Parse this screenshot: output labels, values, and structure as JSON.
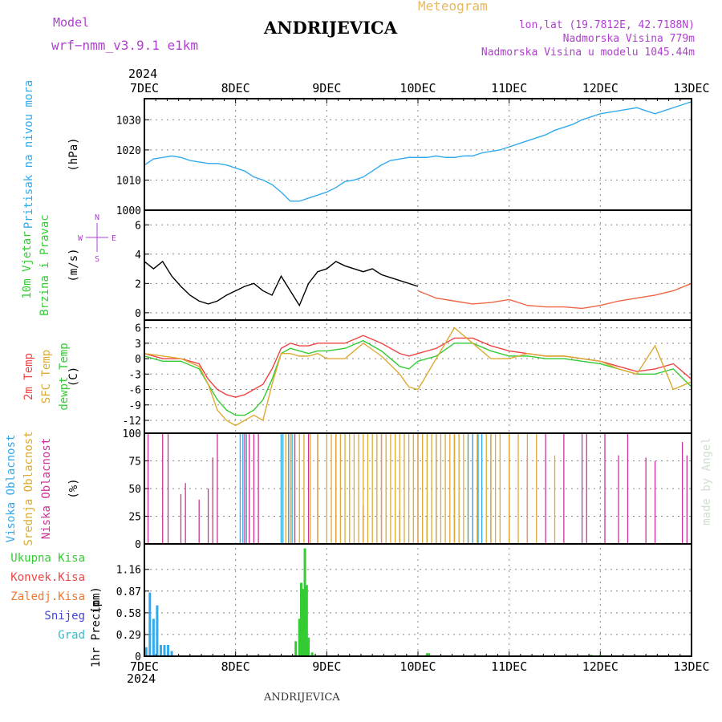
{
  "header": {
    "model_label": "Model",
    "model_name": "wrf−nmm_v3.9.1  e1km",
    "station": "ANDRIJEVICA",
    "product": "Meteogram",
    "lonlat": "lon,lat (19.7812E, 42.7188N)",
    "altitude": "Nadmorska Visina 779m",
    "model_altitude": "Nadmorska Visina u modelu 1045.44m",
    "footer_station": "ANDRIJEVICA",
    "watermark": "made by Angel"
  },
  "colors": {
    "pressure": "#33aaee",
    "temp2m": "#ee4444",
    "sfc_temp": "#ddaa33",
    "dewpt": "#33cc33",
    "high_cloud": "#33aaee",
    "mid_cloud": "#ddaa33",
    "low_cloud": "#cc3399",
    "total_precip": "#33cc33",
    "conv_precip": "#ee4444",
    "frozen_precip": "#ee7733",
    "snow": "#4444dd",
    "graupel": "#33bbcc",
    "wind_line": "#000000",
    "wind_gust": "#ee6644"
  },
  "chart_data": {
    "type": "meteogram",
    "time_axis": {
      "year": "2024",
      "days": [
        "7DEC",
        "8DEC",
        "9DEC",
        "10DEC",
        "11DEC",
        "12DEC",
        "13DEC"
      ],
      "start": "2024-12-07 00:00",
      "end": "2024-12-13 00:00"
    },
    "panels": [
      {
        "id": "pressure",
        "type": "line",
        "ylabel_lines": [
          "Pritisak na nivou mora"
        ],
        "unit": "(hPa)",
        "ylim": [
          1000,
          1037
        ],
        "yticks": [
          1000,
          1010,
          1020,
          1030
        ],
        "series": [
          {
            "color_key": "pressure",
            "x_days": [
              0,
              0.1,
              0.2,
              0.3,
              0.4,
              0.5,
              0.6,
              0.7,
              0.8,
              0.9,
              1.0,
              1.1,
              1.2,
              1.3,
              1.4,
              1.5,
              1.6,
              1.7,
              1.8,
              1.9,
              2.0,
              2.1,
              2.2,
              2.3,
              2.4,
              2.5,
              2.6,
              2.7,
              2.8,
              2.9,
              3.0,
              3.1,
              3.2,
              3.3,
              3.4,
              3.5,
              3.6,
              3.7,
              3.8,
              3.9,
              4.0,
              4.1,
              4.2,
              4.3,
              4.4,
              4.5,
              4.6,
              4.7,
              4.8,
              4.9,
              5.0,
              5.1,
              5.2,
              5.3,
              5.4,
              5.5,
              5.6,
              5.7,
              5.8,
              5.9,
              6.0
            ],
            "values": [
              1015,
              1017,
              1017.5,
              1018,
              1017.5,
              1016.5,
              1016,
              1015.5,
              1015.5,
              1015,
              1014,
              1013,
              1011,
              1010,
              1008.5,
              1006,
              1003,
              1003,
              1004,
              1005,
              1006,
              1007.5,
              1009.5,
              1010,
              1011,
              1013,
              1015,
              1016.5,
              1017,
              1017.5,
              1017.5,
              1017.5,
              1018,
              1017.5,
              1017.5,
              1018,
              1018,
              1019,
              1019.5,
              1020,
              1021,
              1022,
              1023,
              1024,
              1025,
              1026.5,
              1027.5,
              1028.5,
              1030,
              1031,
              1032,
              1032.5,
              1033,
              1033.5,
              1034,
              1033,
              1032,
              1033,
              1034,
              1035,
              1036
            ]
          }
        ]
      },
      {
        "id": "wind",
        "type": "line",
        "ylabel_lines": [
          "10m Vjetar",
          "Brzina i Pravac"
        ],
        "unit": "(m/s)",
        "ylim": [
          -0.5,
          7
        ],
        "yticks": [
          0,
          2,
          4,
          6
        ],
        "compass": [
          "N",
          "E",
          "S",
          "W"
        ],
        "series": [
          {
            "color_key": "wind_line",
            "x_days": [
              0,
              0.1,
              0.2,
              0.3,
              0.4,
              0.5,
              0.6,
              0.7,
              0.8,
              0.9,
              1.0,
              1.1,
              1.2,
              1.3,
              1.4,
              1.5,
              1.6,
              1.7,
              1.8,
              1.9,
              2.0,
              2.1,
              2.2,
              2.3,
              2.4,
              2.5,
              2.6,
              2.7,
              2.8,
              2.9,
              3.0
            ],
            "values": [
              3.5,
              3.0,
              3.5,
              2.5,
              1.8,
              1.2,
              0.8,
              0.6,
              0.8,
              1.2,
              1.5,
              1.8,
              2.0,
              1.5,
              1.2,
              2.5,
              1.5,
              0.5,
              2.0,
              2.8,
              3.0,
              3.5,
              3.2,
              3.0,
              2.8,
              3.0,
              2.6,
              2.4,
              2.2,
              2.0,
              1.8
            ]
          },
          {
            "color_key": "wind_gust",
            "x_days": [
              3.0,
              3.2,
              3.4,
              3.6,
              3.8,
              4.0,
              4.2,
              4.4,
              4.6,
              4.8,
              5.0,
              5.2,
              5.4,
              5.6,
              5.8,
              6.0
            ],
            "values": [
              1.5,
              1.0,
              0.8,
              0.6,
              0.7,
              0.9,
              0.5,
              0.4,
              0.4,
              0.3,
              0.5,
              0.8,
              1.0,
              1.2,
              1.5,
              2.0
            ]
          }
        ]
      },
      {
        "id": "temperature",
        "type": "line",
        "ylabel_lines": [
          "2m Temp",
          "SFC Temp",
          "dewpt Temp"
        ],
        "unit": "(C)",
        "ylim": [
          -14.5,
          7.5
        ],
        "yticks": [
          -12,
          -9,
          -6,
          -3,
          0,
          3,
          6
        ],
        "series": [
          {
            "color_key": "temp2m",
            "x_days": [
              0,
              0.2,
              0.4,
              0.6,
              0.7,
              0.8,
              0.9,
              1.0,
              1.1,
              1.2,
              1.3,
              1.4,
              1.5,
              1.6,
              1.7,
              1.8,
              1.9,
              2.0,
              2.2,
              2.4,
              2.6,
              2.8,
              2.9,
              3.0,
              3.2,
              3.4,
              3.6,
              3.8,
              4.0,
              4.2,
              4.4,
              4.6,
              4.8,
              5.0,
              5.2,
              5.4,
              5.6,
              5.8,
              6.0
            ],
            "values": [
              1,
              0,
              0,
              -1,
              -4,
              -6,
              -7,
              -7.5,
              -7,
              -6,
              -5,
              -2,
              2,
              3,
              2.5,
              2.5,
              3,
              3,
              3,
              4.5,
              3,
              1,
              0.5,
              1,
              2,
              4,
              4,
              2.5,
              1.5,
              1,
              0.5,
              0.5,
              0,
              -0.5,
              -1.5,
              -2.5,
              -2,
              -1,
              -4
            ]
          },
          {
            "color_key": "dewpt",
            "x_days": [
              0,
              0.2,
              0.4,
              0.6,
              0.7,
              0.8,
              0.9,
              1.0,
              1.1,
              1.2,
              1.3,
              1.4,
              1.5,
              1.6,
              1.7,
              1.8,
              1.9,
              2.0,
              2.2,
              2.4,
              2.6,
              2.8,
              2.9,
              3.0,
              3.2,
              3.4,
              3.6,
              3.8,
              4.0,
              4.2,
              4.4,
              4.6,
              4.8,
              5.0,
              5.2,
              5.4,
              5.6,
              5.8,
              6.0
            ],
            "values": [
              0.5,
              -0.5,
              -0.5,
              -2,
              -5,
              -8,
              -10,
              -11,
              -11,
              -10,
              -8,
              -4,
              1,
              2,
              1.5,
              1,
              1.5,
              1.5,
              2,
              3.5,
              1.5,
              -1.5,
              -2,
              -0.5,
              0.5,
              3,
              3,
              1.5,
              0.5,
              0.5,
              0,
              0,
              -0.5,
              -1,
              -2,
              -3,
              -3,
              -2,
              -5.5
            ]
          },
          {
            "color_key": "sfc_temp",
            "x_days": [
              0,
              0.2,
              0.4,
              0.6,
              0.7,
              0.8,
              0.9,
              1.0,
              1.1,
              1.2,
              1.3,
              1.4,
              1.5,
              1.6,
              1.7,
              1.8,
              1.9,
              2.0,
              2.2,
              2.4,
              2.6,
              2.8,
              2.9,
              3.0,
              3.2,
              3.4,
              3.6,
              3.8,
              4.0,
              4.2,
              4.4,
              4.6,
              4.8,
              5.0,
              5.2,
              5.4,
              5.6,
              5.8,
              6.0
            ],
            "values": [
              1,
              0.5,
              0,
              -1.5,
              -5,
              -10,
              -12,
              -13,
              -12,
              -11,
              -12,
              -5,
              1,
              1,
              0.5,
              0.5,
              1,
              0,
              0,
              3,
              0.5,
              -3,
              -5.5,
              -6,
              0,
              6,
              3,
              0,
              0,
              1,
              0.5,
              0.5,
              0,
              -0.5,
              -2,
              -3,
              2.5,
              -6,
              -4.5
            ]
          }
        ]
      },
      {
        "id": "cloud",
        "type": "bar",
        "ylabel_lines": [
          "Visoka Oblacnost",
          "Srednja Oblacnost",
          "Niska Oblacnost"
        ],
        "unit": "(%)",
        "ylim": [
          0,
          100
        ],
        "yticks": [
          0,
          25,
          50,
          75,
          100
        ],
        "series": [
          {
            "color_key": "low_cloud",
            "x_days": [
              0.04,
              0.2,
              0.26,
              0.4,
              0.45,
              0.6,
              0.7,
              0.75,
              0.8,
              1.1,
              1.15,
              1.2,
              1.25,
              1.5,
              1.6,
              1.65,
              1.8,
              1.9,
              2.1,
              2.4,
              2.6,
              2.8,
              3.0,
              3.1,
              3.2,
              3.4,
              3.6,
              3.8,
              4.0,
              4.2,
              4.4,
              4.6,
              4.8,
              4.85,
              5.05,
              5.2,
              5.3,
              5.5,
              5.6,
              5.9,
              5.95
            ],
            "values": [
              100,
              100,
              100,
              45,
              55,
              40,
              50,
              78,
              100,
              100,
              100,
              100,
              100,
              100,
              100,
              100,
              100,
              100,
              100,
              35,
              100,
              30,
              100,
              25,
              100,
              100,
              100,
              100,
              100,
              80,
              100,
              100,
              100,
              100,
              100,
              80,
              100,
              78,
              75,
              92,
              80
            ]
          },
          {
            "color_key": "mid_cloud",
            "x_days": [
              1.55,
              1.6,
              1.7,
              1.75,
              1.82,
              1.9,
              2.0,
              2.05,
              2.1,
              2.15,
              2.2,
              2.25,
              2.3,
              2.35,
              2.4,
              2.45,
              2.5,
              2.55,
              2.6,
              2.65,
              2.7,
              2.75,
              2.8,
              2.85,
              2.9,
              2.95,
              3.0,
              3.05,
              3.1,
              3.15,
              3.2,
              3.25,
              3.3,
              3.35,
              3.4,
              3.45,
              3.5,
              3.55,
              3.6,
              3.65,
              3.7,
              3.75,
              3.8,
              3.85,
              3.9,
              4.0,
              4.1,
              4.2,
              4.3,
              4.5
            ],
            "values": [
              100,
              100,
              100,
              100,
              100,
              100,
              100,
              100,
              100,
              100,
              100,
              100,
              100,
              100,
              100,
              100,
              100,
              100,
              100,
              100,
              100,
              100,
              100,
              100,
              100,
              100,
              100,
              100,
              100,
              100,
              100,
              100,
              100,
              100,
              100,
              100,
              100,
              100,
              100,
              100,
              100,
              100,
              100,
              100,
              100,
              100,
              100,
              100,
              100,
              80
            ]
          },
          {
            "color_key": "high_cloud",
            "x_days": [
              1.05,
              1.08,
              1.12,
              1.5,
              1.52,
              1.58,
              1.62,
              3.55,
              3.6,
              3.66,
              3.7
            ],
            "values": [
              100,
              100,
              100,
              100,
              100,
              100,
              100,
              100,
              100,
              100,
              100
            ]
          }
        ]
      },
      {
        "id": "precip",
        "type": "bar",
        "ylabel_lines": [
          "1hr Precip"
        ],
        "unit": "(mm)",
        "ylim": [
          0,
          1.5
        ],
        "yticks": [
          0,
          0.29,
          0.58,
          0.87,
          1.16
        ],
        "legend": [
          "Ukupna Kisa",
          "Konvek.Kisa",
          "Zaledj.Kisa",
          "Snijeg",
          "Grad"
        ],
        "series": [
          {
            "color_key": "total_precip",
            "x_days": [
              1.66,
              1.7,
              1.72,
              1.74,
              1.76,
              1.78,
              1.8,
              1.84,
              3.1,
              3.12,
              4.9,
              5.0
            ],
            "values": [
              0.2,
              0.5,
              0.98,
              0.9,
              1.44,
              0.95,
              0.25,
              0.05,
              0.04,
              0.04,
              0.02,
              0.02
            ]
          },
          {
            "color_key": "high_cloud",
            "x_days": [
              0.02,
              0.06,
              0.1,
              0.14,
              0.18,
              0.22,
              0.26,
              0.3
            ],
            "values": [
              0.12,
              0.85,
              0.5,
              0.68,
              0.15,
              0.15,
              0.15,
              0.07
            ]
          }
        ]
      }
    ]
  }
}
